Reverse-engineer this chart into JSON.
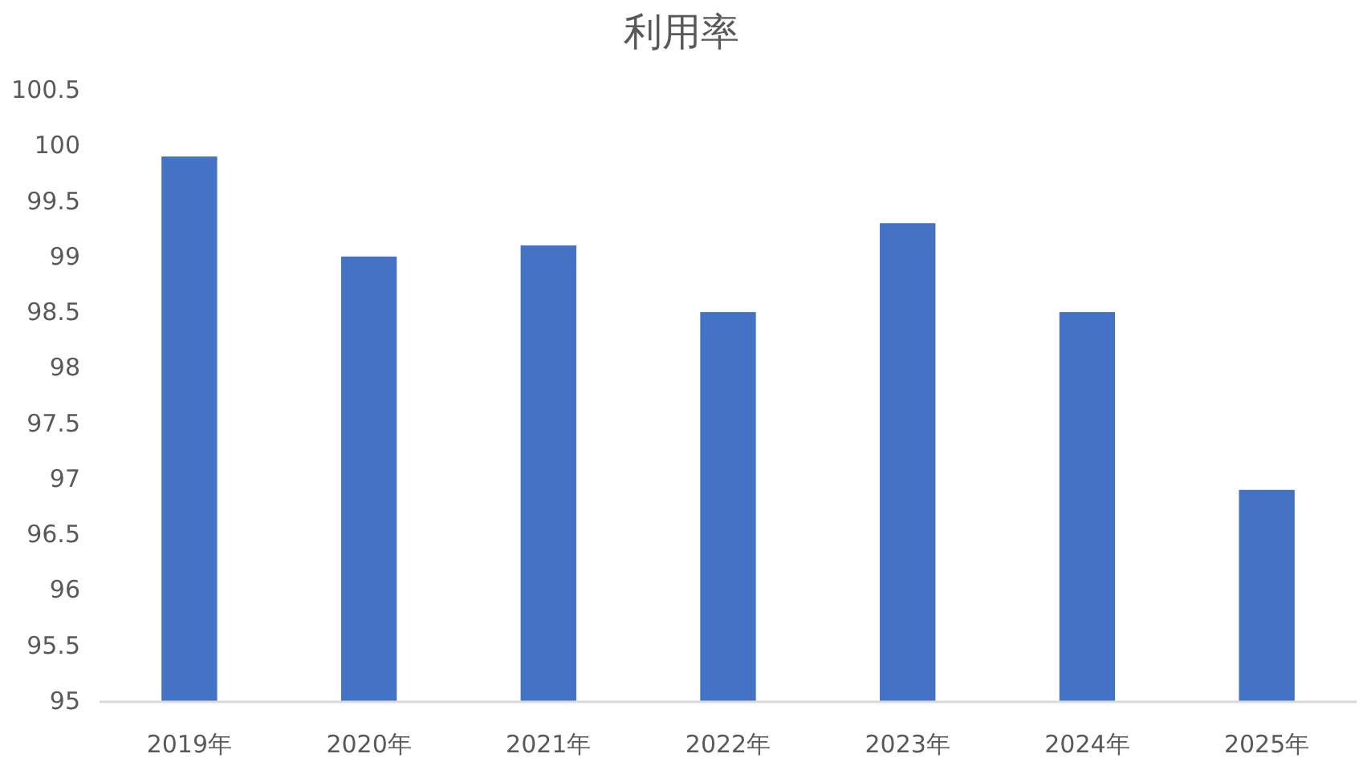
{
  "chart_data": {
    "type": "bar",
    "title": "利用率",
    "categories": [
      "2019年",
      "2020年",
      "2021年",
      "2022年",
      "2023年",
      "2024年",
      "2025年"
    ],
    "values": [
      99.9,
      99.0,
      99.1,
      98.5,
      99.3,
      98.5,
      96.9
    ],
    "color": "#4472c4",
    "ylim": [
      95,
      100.5
    ],
    "yticks": [
      95,
      95.5,
      96,
      96.5,
      97,
      97.5,
      98,
      98.5,
      99,
      99.5,
      100,
      100.5
    ]
  }
}
